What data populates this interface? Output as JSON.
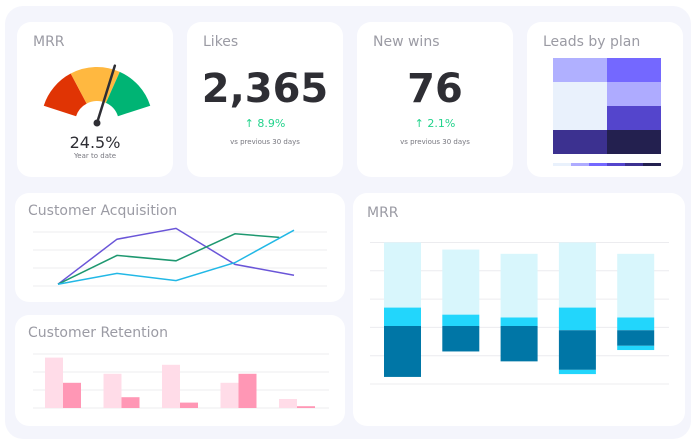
{
  "mrr_gauge": {
    "title": "MRR",
    "value": "24.5%",
    "caption": "Year to date",
    "fraction": 0.62,
    "colors": {
      "red": "#e03404",
      "yellow": "#ffb840",
      "green": "#00b474"
    }
  },
  "likes": {
    "title": "Likes",
    "value": "2,365",
    "delta": "8.9%",
    "comparison": "vs previous 30 days"
  },
  "new_wins": {
    "title": "New wins",
    "value": "76",
    "delta": "2.1%",
    "comparison": "vs previous 30 days"
  },
  "leads_by_plan": {
    "title": "Leads by plan",
    "cells": [
      [
        "#b0b0ff",
        "#7468ff"
      ],
      [
        "#e9f1fc",
        "#aeabff"
      ],
      [
        "#e9f1fc",
        "#5445cc"
      ],
      [
        "#3c3190",
        "#23204f"
      ]
    ],
    "legend_colors": [
      "#e9f1fc",
      "#aeabff",
      "#7468ff",
      "#5445cc",
      "#3c3190",
      "#23204f"
    ]
  },
  "chart_data": [
    {
      "type": "line",
      "title": "Customer Acquisition",
      "ylim": [
        0,
        3
      ],
      "grid": true,
      "x": [
        0,
        1,
        2,
        3,
        4
      ],
      "series": [
        {
          "color": "#6a55d8",
          "values": [
            0.1,
            2.6,
            3.2,
            1.2,
            0.6
          ]
        },
        {
          "color": "#1e9870",
          "values": [
            0.1,
            1.7,
            1.4,
            2.9,
            2.7
          ]
        },
        {
          "color": "#22b8e6",
          "values": [
            0.1,
            0.7,
            0.3,
            1.3,
            3.1
          ]
        }
      ]
    },
    {
      "type": "bar",
      "title": "Customer Retention",
      "ylim": [
        0,
        3
      ],
      "grid": true,
      "series": [
        {
          "color": "#ffdce8",
          "values": [
            2.8,
            1.9,
            2.4,
            1.4,
            0.5
          ]
        },
        {
          "color": "#ff97b5",
          "values": [
            1.4,
            0.6,
            0.3,
            1.9,
            0.1
          ]
        }
      ]
    },
    {
      "type": "bar",
      "title": "MRR",
      "ylim": [
        0,
        5
      ],
      "grid": true,
      "colors": {
        "light": "#d8f6fc",
        "cyan": "#22d6fc",
        "dark": "#0076a6"
      },
      "bars": [
        [
          [
            2.7,
            5.0,
            "light"
          ],
          [
            2.05,
            2.7,
            "cyan"
          ],
          [
            0.25,
            2.05,
            "dark"
          ]
        ],
        [
          [
            2.45,
            4.75,
            "light"
          ],
          [
            2.05,
            2.45,
            "cyan"
          ],
          [
            1.15,
            2.05,
            "dark"
          ]
        ],
        [
          [
            2.35,
            4.6,
            "light"
          ],
          [
            2.05,
            2.35,
            "cyan"
          ],
          [
            0.8,
            2.05,
            "dark"
          ]
        ],
        [
          [
            2.7,
            5.0,
            "light"
          ],
          [
            1.9,
            2.7,
            "cyan"
          ],
          [
            0.5,
            1.9,
            "dark"
          ],
          [
            0.35,
            0.5,
            "cyan"
          ]
        ],
        [
          [
            2.35,
            4.6,
            "light"
          ],
          [
            1.9,
            2.35,
            "cyan"
          ],
          [
            1.35,
            1.9,
            "dark"
          ],
          [
            1.2,
            1.35,
            "cyan"
          ]
        ]
      ]
    }
  ]
}
